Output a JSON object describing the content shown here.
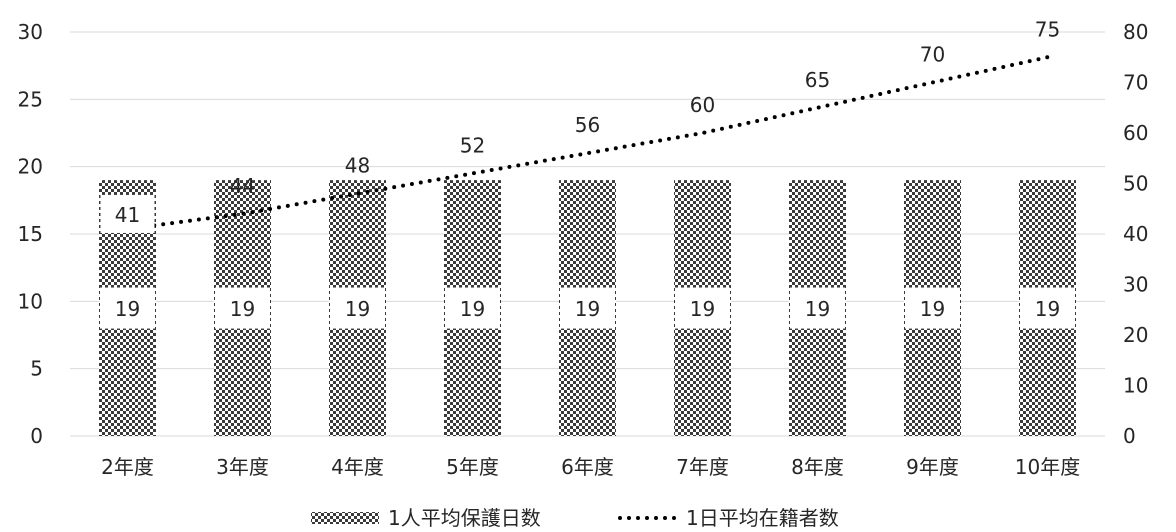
{
  "chart_data": {
    "type": "bar",
    "categories": [
      "2年度",
      "3年度",
      "4年度",
      "5年度",
      "6年度",
      "7年度",
      "8年度",
      "9年度",
      "10年度"
    ],
    "series": [
      {
        "name": "1人平均保護日数",
        "kind": "bar",
        "axis": "left",
        "pattern": "checker-dots",
        "values": [
          19,
          19,
          19,
          19,
          19,
          19,
          19,
          19,
          19
        ]
      },
      {
        "name": "1日平均在籍者数",
        "kind": "line",
        "axis": "right",
        "line_style": "dotted",
        "values": [
          41,
          44,
          48,
          52,
          56,
          60,
          65,
          70,
          75
        ]
      }
    ],
    "y_left": {
      "min": 0,
      "max": 30,
      "step": 5,
      "ticks": [
        "0",
        "5",
        "10",
        "15",
        "20",
        "25",
        "30"
      ]
    },
    "y_right": {
      "min": 0,
      "max": 80,
      "step": 10,
      "ticks": [
        "0",
        "10",
        "20",
        "30",
        "40",
        "50",
        "60",
        "70",
        "80"
      ]
    },
    "grid": true,
    "legend_position": "bottom",
    "colors": {
      "bar_dark": "#3a3a3a",
      "bar_light": "#ffffff",
      "line": "#000000",
      "grid": "#d9d9d9",
      "text": "#262626"
    }
  }
}
